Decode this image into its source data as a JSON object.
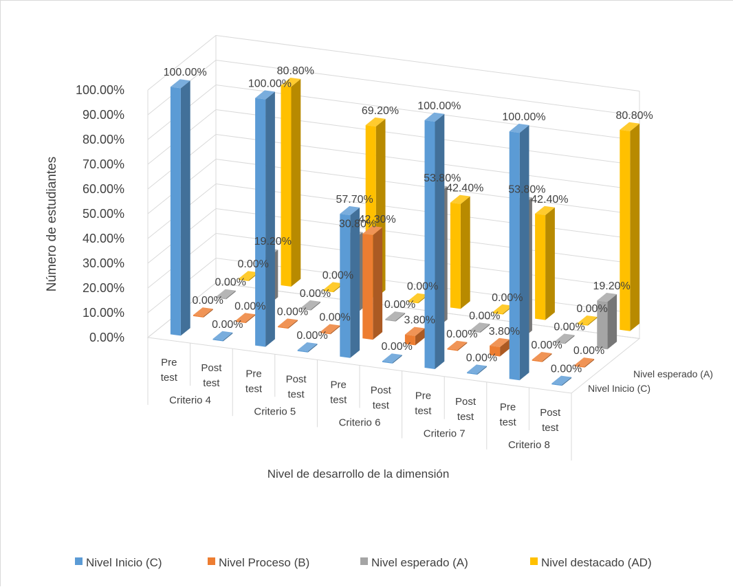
{
  "chart_data": {
    "type": "bar",
    "subtype": "3d-column-grouped",
    "title": "",
    "ylabel": "Número de estudiantes",
    "xlabel": "Nivel de desarrollo de la dimensión",
    "ylim": [
      0,
      100
    ],
    "y_ticks": [
      "0.00%",
      "10.00%",
      "20.00%",
      "30.00%",
      "40.00%",
      "50.00%",
      "60.00%",
      "70.00%",
      "80.00%",
      "90.00%",
      "100.00%"
    ],
    "groups": [
      "Criterio 4",
      "Criterio 5",
      "Criterio 6",
      "Criterio 7",
      "Criterio 8"
    ],
    "subcategories": [
      "Pre test",
      "Post test"
    ],
    "depth_axis_labels": [
      "Nivel esperado (A)",
      "Nivel Inicio (C)"
    ],
    "legend_position": "bottom",
    "series": [
      {
        "name": "Nivel Inicio (C)",
        "color": "#5b9bd5",
        "values": [
          100,
          0,
          100,
          0,
          57.7,
          0,
          100,
          0,
          100,
          0
        ],
        "labels": [
          "100.00%",
          "0.00%",
          "100.00%",
          "0.00%",
          "57.70%",
          "0.00%",
          "100.00%",
          "0.00%",
          "100.00%",
          "0.00%"
        ]
      },
      {
        "name": "Nivel Proceso (B)",
        "color": "#ed7d31",
        "values": [
          0,
          0,
          0,
          0,
          42.3,
          3.8,
          0,
          3.8,
          0,
          0
        ],
        "labels": [
          "0.00%",
          "0.00%",
          "0.00%",
          "0.00%",
          "42.30%",
          "3.80%",
          "0.00%",
          "3.80%",
          "0.00%",
          "0.00%"
        ]
      },
      {
        "name": "Nivel esperado (A)",
        "color": "#a5a5a5",
        "values": [
          0,
          19.2,
          0,
          30.8,
          0,
          53.8,
          0,
          53.8,
          0,
          19.2
        ],
        "labels": [
          "0.00%",
          "19.20%",
          "0.00%",
          "30.80%",
          "0.00%",
          "53.80%",
          "0.00%",
          "53.80%",
          "0.00%",
          "19.20%"
        ]
      },
      {
        "name": "Nivel destacado (AD)",
        "color": "#ffc000",
        "values": [
          0,
          80.8,
          0,
          69.2,
          0,
          42.4,
          0,
          42.4,
          0,
          80.8
        ],
        "labels": [
          "0.00%",
          "80.80%",
          "0.00%",
          "69.20%",
          "0.00%",
          "42.40%",
          "0.00%",
          "42.40%",
          "0.00%",
          "80.80%"
        ]
      }
    ]
  }
}
